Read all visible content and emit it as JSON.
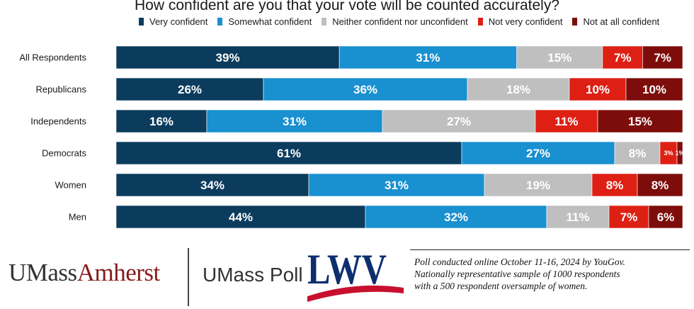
{
  "chart_data": {
    "type": "bar",
    "orientation": "horizontal",
    "stacked": true,
    "title": "How confident are you that your vote will be counted accurately?",
    "categories": [
      "All Respondents",
      "Republicans",
      "Independents",
      "Democrats",
      "Women",
      "Men"
    ],
    "series": [
      {
        "name": "Very confident",
        "color": "#0b3c5d",
        "values": [
          39,
          26,
          16,
          61,
          34,
          44
        ],
        "labels": [
          "39%",
          "26%",
          "16%",
          "61%",
          "34%",
          "44%"
        ]
      },
      {
        "name": "Somewhat confident",
        "color": "#1990d0",
        "values": [
          31,
          36,
          31,
          27,
          31,
          32
        ],
        "labels": [
          "31%",
          "36%",
          "31%",
          "27%",
          "31%",
          "32%"
        ]
      },
      {
        "name": "Neither confident nor unconfident",
        "color": "#bfbfbf",
        "values": [
          15,
          18,
          27,
          8,
          19,
          11
        ],
        "labels": [
          "15%",
          "18%",
          "27%",
          "8%",
          "19%",
          "11%"
        ]
      },
      {
        "name": "Not very confident",
        "color": "#de2014",
        "values": [
          7,
          10,
          11,
          3,
          8,
          7
        ],
        "labels": [
          "7%",
          "10%",
          "11%",
          "3%",
          "8%",
          "7%"
        ]
      },
      {
        "name": "Not at all confident",
        "color": "#7d0d0a",
        "values": [
          7,
          10,
          15,
          1,
          8,
          6
        ],
        "labels": [
          "7%",
          "10%",
          "15%",
          "1%",
          "8%",
          "6%"
        ]
      }
    ],
    "legend_position": "top",
    "grid": false
  },
  "logos": {
    "umass_part1": "UMass",
    "umass_part2": "Amherst",
    "poll": "UMass Poll",
    "lwv": "LWV"
  },
  "footnote": {
    "lines": [
      "Poll conducted online October 11-16, 2024 by YouGov.",
      "Nationally representative sample of 1000 respondents",
      "with a 500 respondent oversample of women."
    ]
  }
}
